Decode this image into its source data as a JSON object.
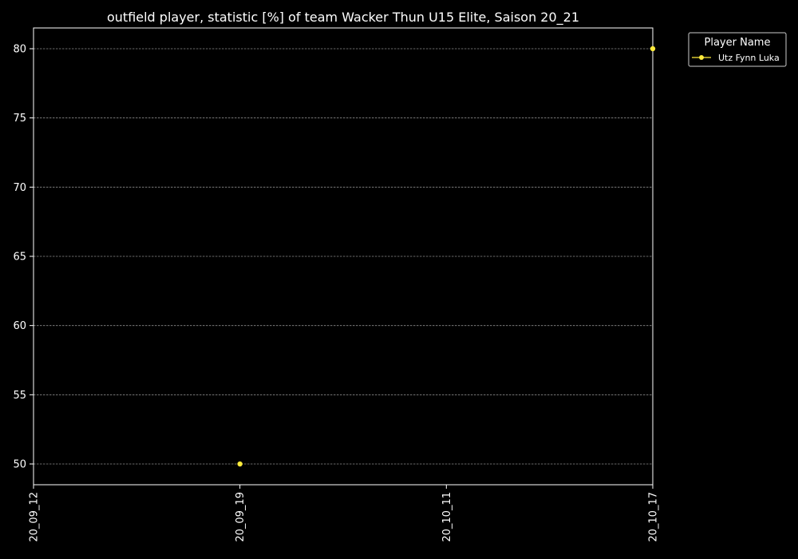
{
  "chart_data": {
    "type": "line",
    "title": "outfield player, statistic [%] of team Wacker Thun U15 Elite, Saison 20_21",
    "xlabel": "",
    "ylabel": "",
    "x_categories": [
      "20_09_12",
      "20_09_19",
      "20_10_11",
      "20_10_17"
    ],
    "ylim": [
      48.5,
      81.5
    ],
    "y_ticks": [
      50,
      55,
      60,
      65,
      70,
      75,
      80
    ],
    "grid": "horizontal dashed",
    "legend": {
      "title": "Player Name",
      "placement": "outside-top-right"
    },
    "series": [
      {
        "name": "Utz Fynn Luka",
        "color": "#ffeb3b",
        "points": [
          {
            "x": "20_09_19",
            "y": 50
          },
          {
            "x": "20_10_17",
            "y": 80
          }
        ]
      }
    ]
  },
  "colors": {
    "background": "#000000",
    "axis": "#ffffff",
    "grid": "#8a8a8a",
    "text": "#ffffff"
  }
}
